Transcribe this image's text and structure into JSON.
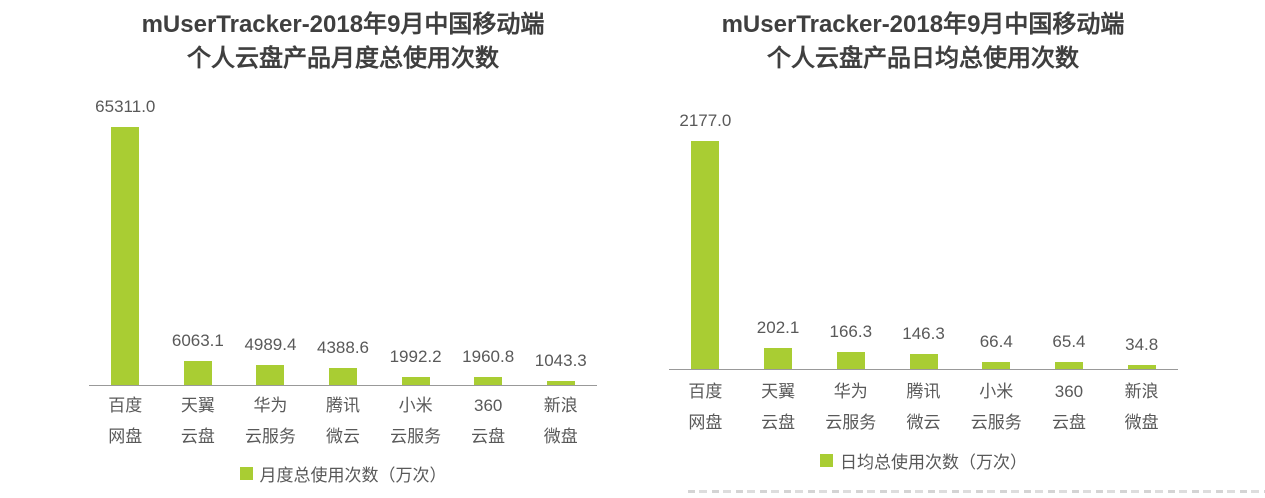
{
  "page": {
    "background_color": "#ffffff",
    "title_color": "#3f3f3f",
    "label_color": "#595959",
    "axis_color": "#999999"
  },
  "chart_data": [
    {
      "type": "bar",
      "title_line1": "mUserTracker-2018年9月中国移动端",
      "title_line2": "个人云盘产品月度总使用次数",
      "categories": [
        "百度\n网盘",
        "天翼\n云盘",
        "华为\n云服务",
        "腾讯\n微云",
        "小米\n云服务",
        "360\n云盘",
        "新浪\n微盘"
      ],
      "values": [
        65311.0,
        6063.1,
        4989.4,
        4388.6,
        1992.2,
        1960.8,
        1043.3
      ],
      "value_labels": [
        "65311.0",
        "6063.1",
        "4989.4",
        "4388.6",
        "1992.2",
        "1960.8",
        "1043.3"
      ],
      "legend": "月度总使用次数（万次）",
      "legend_icon": "square",
      "legend_position": "bottom",
      "bar_color": "#a9cd33",
      "ylim": [
        0,
        65311
      ],
      "grid": false,
      "y_axis_ticks_visible": false
    },
    {
      "type": "bar",
      "title_line1": "mUserTracker-2018年9月中国移动端",
      "title_line2": "个人云盘产品日均总使用次数",
      "categories": [
        "百度\n网盘",
        "天翼\n云盘",
        "华为\n云服务",
        "腾讯\n微云",
        "小米\n云服务",
        "360\n云盘",
        "新浪\n微盘"
      ],
      "values": [
        2177.0,
        202.1,
        166.3,
        146.3,
        66.4,
        65.4,
        34.8
      ],
      "value_labels": [
        "2177.0",
        "202.1",
        "166.3",
        "146.3",
        "66.4",
        "65.4",
        "34.8"
      ],
      "legend": "日均总使用次数（万次）",
      "legend_icon": "square",
      "legend_position": "bottom",
      "bar_color": "#a9cd33",
      "ylim": [
        0,
        2177
      ],
      "grid": false,
      "y_axis_ticks_visible": false
    }
  ]
}
